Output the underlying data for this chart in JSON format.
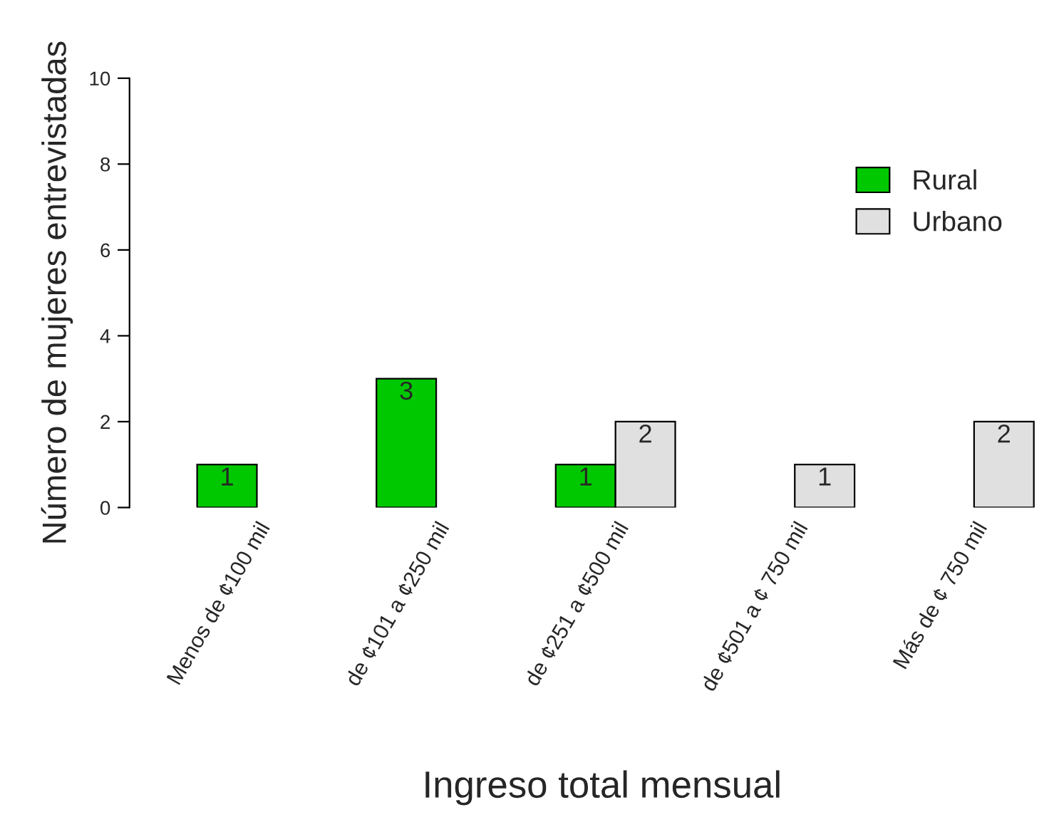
{
  "chart_data": {
    "type": "bar",
    "xlabel": "Ingreso total mensual",
    "ylabel": "Número de mujeres entrevistadas",
    "categories": [
      "Menos de ¢100 mil",
      "de ¢101 a ¢250 mil",
      "de ¢251 a ¢500 mil",
      "de ¢501 a ¢ 750 mil",
      "Más de ¢ 750 mil"
    ],
    "series": [
      {
        "name": "Rural",
        "color": "#00c800",
        "values": [
          1,
          3,
          1,
          null,
          null
        ]
      },
      {
        "name": "Urbano",
        "color": "#e0e0e0",
        "values": [
          null,
          null,
          2,
          1,
          2
        ]
      }
    ],
    "ylim": [
      0,
      10
    ],
    "yticks": [
      0,
      2,
      4,
      6,
      8,
      10
    ],
    "data_labels": true,
    "legend": "top right",
    "grid": false
  }
}
